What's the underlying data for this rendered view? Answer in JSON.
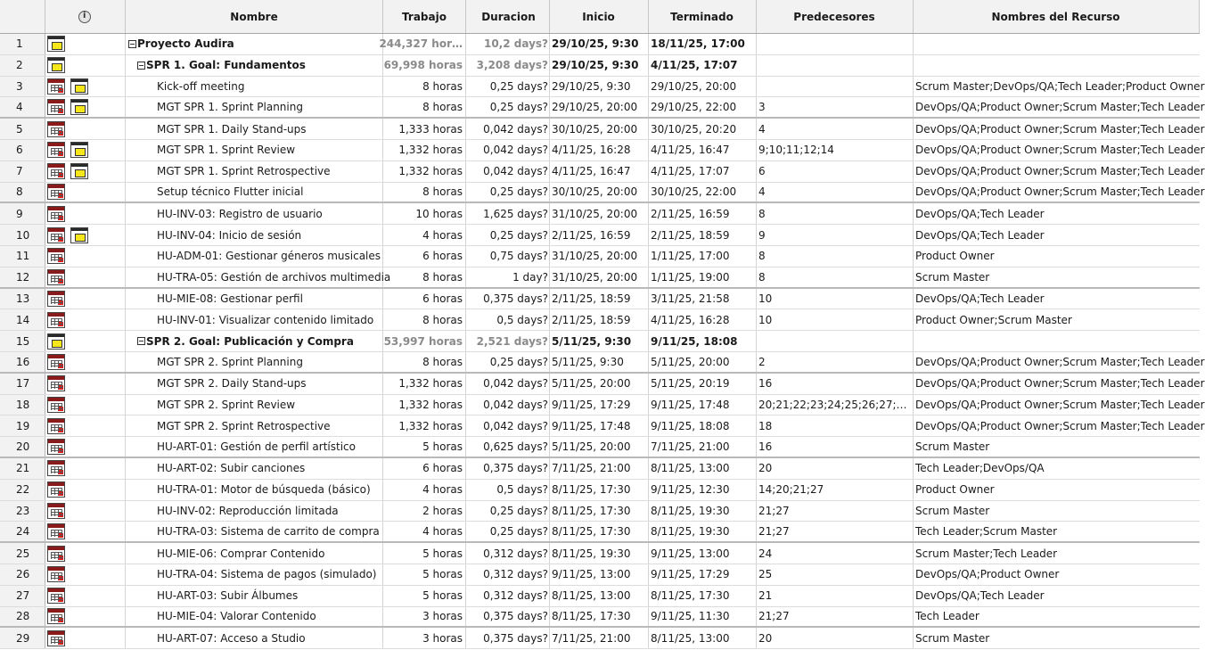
{
  "headers": {
    "info_icon": "info-icon",
    "name": "Nombre",
    "work": "Trabajo",
    "duration": "Duracion",
    "start": "Inicio",
    "end": "Terminado",
    "predecessors": "Predecesores",
    "resources": "Nombres del Recurso"
  },
  "rows": [
    {
      "id": "1",
      "level": 0,
      "summary": true,
      "name": "Proyecto Audira",
      "work": "244,327 hor…",
      "duration": "10,2 days?",
      "start": "29/10/25, 9:30",
      "end": "18/11/25, 17:00",
      "pred": "",
      "res": "",
      "icons": [
        "note"
      ]
    },
    {
      "id": "2",
      "level": 1,
      "summary": true,
      "name": "SPR 1. Goal: Fundamentos",
      "work": "69,998 horas",
      "duration": "3,208 days?",
      "start": "29/10/25, 9:30",
      "end": "4/11/25, 17:07",
      "pred": "",
      "res": "",
      "icons": [
        "note"
      ]
    },
    {
      "id": "3",
      "level": 2,
      "summary": false,
      "name": "Kick-off meeting",
      "work": "8 horas",
      "duration": "0,25 days?",
      "start": "29/10/25, 9:30",
      "end": "29/10/25, 20:00",
      "pred": "",
      "res": "Scrum Master;DevOps/QA;Tech Leader;Product Owner",
      "icons": [
        "cal",
        "note"
      ]
    },
    {
      "id": "4",
      "level": 2,
      "summary": false,
      "name": "MGT SPR 1. Sprint Planning",
      "work": "8 horas",
      "duration": "0,25 days?",
      "start": "29/10/25, 20:00",
      "end": "29/10/25, 22:00",
      "pred": "3",
      "res": "DevOps/QA;Product Owner;Scrum Master;Tech Leader",
      "icons": [
        "cal",
        "note"
      ]
    },
    {
      "id": "5",
      "level": 2,
      "summary": false,
      "name": "MGT SPR 1. Daily Stand-ups",
      "work": "1,333 horas",
      "duration": "0,042 days?",
      "start": "30/10/25, 20:00",
      "end": "30/10/25, 20:20",
      "pred": "4",
      "res": "DevOps/QA;Product Owner;Scrum Master;Tech Leader",
      "icons": [
        "cal"
      ]
    },
    {
      "id": "6",
      "level": 2,
      "summary": false,
      "name": "MGT SPR 1. Sprint Review",
      "work": "1,332 horas",
      "duration": "0,042 days?",
      "start": "4/11/25, 16:28",
      "end": "4/11/25, 16:47",
      "pred": "9;10;11;12;14",
      "res": "DevOps/QA;Product Owner;Scrum Master;Tech Leader",
      "icons": [
        "cal",
        "note"
      ]
    },
    {
      "id": "7",
      "level": 2,
      "summary": false,
      "name": "MGT SPR 1. Sprint Retrospective",
      "work": "1,332 horas",
      "duration": "0,042 days?",
      "start": "4/11/25, 16:47",
      "end": "4/11/25, 17:07",
      "pred": "6",
      "res": "DevOps/QA;Product Owner;Scrum Master;Tech Leader",
      "icons": [
        "cal",
        "note"
      ]
    },
    {
      "id": "8",
      "level": 2,
      "summary": false,
      "name": "Setup técnico Flutter inicial",
      "work": "8 horas",
      "duration": "0,25 days?",
      "start": "30/10/25, 20:00",
      "end": "30/10/25, 22:00",
      "pred": "4",
      "res": "DevOps/QA;Product Owner;Scrum Master;Tech Leader",
      "icons": [
        "cal"
      ]
    },
    {
      "id": "9",
      "level": 2,
      "summary": false,
      "name": "HU-INV-03: Registro de usuario",
      "work": "10 horas",
      "duration": "1,625 days?",
      "start": "31/10/25, 20:00",
      "end": "2/11/25, 16:59",
      "pred": "8",
      "res": "DevOps/QA;Tech Leader",
      "icons": [
        "cal"
      ]
    },
    {
      "id": "10",
      "level": 2,
      "summary": false,
      "name": "HU-INV-04: Inicio de sesión",
      "work": "4 horas",
      "duration": "0,25 days?",
      "start": "2/11/25, 16:59",
      "end": "2/11/25, 18:59",
      "pred": "9",
      "res": "DevOps/QA;Tech Leader",
      "icons": [
        "cal",
        "note"
      ]
    },
    {
      "id": "11",
      "level": 2,
      "summary": false,
      "name": "HU-ADM-01: Gestionar géneros musicales",
      "work": "6 horas",
      "duration": "0,75 days?",
      "start": "31/10/25, 20:00",
      "end": "1/11/25, 17:00",
      "pred": "8",
      "res": "Product Owner",
      "icons": [
        "cal"
      ]
    },
    {
      "id": "12",
      "level": 2,
      "summary": false,
      "name": "HU-TRA-05: Gestión de archivos multimedia",
      "work": "8 horas",
      "duration": "1 day?",
      "start": "31/10/25, 20:00",
      "end": "1/11/25, 19:00",
      "pred": "8",
      "res": "Scrum Master",
      "icons": [
        "cal"
      ]
    },
    {
      "id": "13",
      "level": 2,
      "summary": false,
      "name": "HU-MIE-08: Gestionar perfil",
      "work": "6 horas",
      "duration": "0,375 days?",
      "start": "2/11/25, 18:59",
      "end": "3/11/25, 21:58",
      "pred": "10",
      "res": "DevOps/QA;Tech Leader",
      "icons": [
        "cal"
      ]
    },
    {
      "id": "14",
      "level": 2,
      "summary": false,
      "name": "HU-INV-01: Visualizar contenido limitado",
      "work": "8 horas",
      "duration": "0,5 days?",
      "start": "2/11/25, 18:59",
      "end": "4/11/25, 16:28",
      "pred": "10",
      "res": "Product Owner;Scrum Master",
      "icons": [
        "cal"
      ]
    },
    {
      "id": "15",
      "level": 1,
      "summary": true,
      "name": "SPR 2. Goal: Publicación y Compra",
      "work": "53,997 horas",
      "duration": "2,521 days?",
      "start": "5/11/25, 9:30",
      "end": "9/11/25, 18:08",
      "pred": "",
      "res": "",
      "icons": [
        "note"
      ]
    },
    {
      "id": "16",
      "level": 2,
      "summary": false,
      "name": "MGT SPR 2. Sprint Planning",
      "work": "8 horas",
      "duration": "0,25 days?",
      "start": "5/11/25, 9:30",
      "end": "5/11/25, 20:00",
      "pred": "2",
      "res": "DevOps/QA;Product Owner;Scrum Master;Tech Leader",
      "icons": [
        "cal"
      ]
    },
    {
      "id": "17",
      "level": 2,
      "summary": false,
      "name": "MGT SPR 2. Daily Stand-ups",
      "work": "1,332 horas",
      "duration": "0,042 days?",
      "start": "5/11/25, 20:00",
      "end": "5/11/25, 20:19",
      "pred": "16",
      "res": "DevOps/QA;Product Owner;Scrum Master;Tech Leader",
      "icons": [
        "cal"
      ]
    },
    {
      "id": "18",
      "level": 2,
      "summary": false,
      "name": "MGT SPR 2. Sprint Review",
      "work": "1,332 horas",
      "duration": "0,042 days?",
      "start": "9/11/25, 17:29",
      "end": "9/11/25, 17:48",
      "pred": "20;21;22;23;24;25;26;27;…",
      "res": "DevOps/QA;Product Owner;Scrum Master;Tech Leader",
      "icons": [
        "cal"
      ]
    },
    {
      "id": "19",
      "level": 2,
      "summary": false,
      "name": "MGT SPR 2. Sprint Retrospective",
      "work": "1,332 horas",
      "duration": "0,042 days?",
      "start": "9/11/25, 17:48",
      "end": "9/11/25, 18:08",
      "pred": "18",
      "res": "DevOps/QA;Product Owner;Scrum Master;Tech Leader",
      "icons": [
        "cal"
      ]
    },
    {
      "id": "20",
      "level": 2,
      "summary": false,
      "name": "HU-ART-01: Gestión de perfil artístico",
      "work": "5 horas",
      "duration": "0,625 days?",
      "start": "5/11/25, 20:00",
      "end": "7/11/25, 21:00",
      "pred": "16",
      "res": "Scrum Master",
      "icons": [
        "cal"
      ]
    },
    {
      "id": "21",
      "level": 2,
      "summary": false,
      "name": "HU-ART-02: Subir canciones",
      "work": "6 horas",
      "duration": "0,375 days?",
      "start": "7/11/25, 21:00",
      "end": "8/11/25, 13:00",
      "pred": "20",
      "res": "Tech Leader;DevOps/QA",
      "icons": [
        "cal"
      ]
    },
    {
      "id": "22",
      "level": 2,
      "summary": false,
      "name": "HU-TRA-01: Motor de búsqueda (básico)",
      "work": "4 horas",
      "duration": "0,5 days?",
      "start": "8/11/25, 17:30",
      "end": "9/11/25, 12:30",
      "pred": "14;20;21;27",
      "res": "Product Owner",
      "icons": [
        "cal"
      ]
    },
    {
      "id": "23",
      "level": 2,
      "summary": false,
      "name": "HU-INV-02: Reproducción limitada",
      "work": "2 horas",
      "duration": "0,25 days?",
      "start": "8/11/25, 17:30",
      "end": "8/11/25, 19:30",
      "pred": "21;27",
      "res": "Scrum Master",
      "icons": [
        "cal"
      ]
    },
    {
      "id": "24",
      "level": 2,
      "summary": false,
      "name": "HU-TRA-03: Sistema de carrito de compra",
      "work": "4 horas",
      "duration": "0,25 days?",
      "start": "8/11/25, 17:30",
      "end": "8/11/25, 19:30",
      "pred": "21;27",
      "res": "Tech Leader;Scrum Master",
      "icons": [
        "cal"
      ]
    },
    {
      "id": "25",
      "level": 2,
      "summary": false,
      "name": "HU-MIE-06: Comprar Contenido",
      "work": "5 horas",
      "duration": "0,312 days?",
      "start": "8/11/25, 19:30",
      "end": "9/11/25, 13:00",
      "pred": "24",
      "res": "Scrum Master;Tech Leader",
      "icons": [
        "cal"
      ]
    },
    {
      "id": "26",
      "level": 2,
      "summary": false,
      "name": "HU-TRA-04: Sistema de pagos (simulado)",
      "work": "5 horas",
      "duration": "0,312 days?",
      "start": "9/11/25, 13:00",
      "end": "9/11/25, 17:29",
      "pred": "25",
      "res": "DevOps/QA;Product Owner",
      "icons": [
        "cal"
      ]
    },
    {
      "id": "27",
      "level": 2,
      "summary": false,
      "name": "HU-ART-03: Subir Álbumes",
      "work": "5 horas",
      "duration": "0,312 days?",
      "start": "8/11/25, 13:00",
      "end": "8/11/25, 17:30",
      "pred": "21",
      "res": "DevOps/QA;Tech Leader",
      "icons": [
        "cal"
      ]
    },
    {
      "id": "28",
      "level": 2,
      "summary": false,
      "name": "HU-MIE-04: Valorar Contenido",
      "work": "3 horas",
      "duration": "0,375 days?",
      "start": "8/11/25, 17:30",
      "end": "9/11/25, 11:30",
      "pred": "21;27",
      "res": "Tech Leader",
      "icons": [
        "cal"
      ]
    },
    {
      "id": "29",
      "level": 2,
      "summary": false,
      "name": "HU-ART-07: Acceso a Studio",
      "work": "3 horas",
      "duration": "0,375 days?",
      "start": "7/11/25, 21:00",
      "end": "8/11/25, 13:00",
      "pred": "20",
      "res": "Scrum Master",
      "icons": [
        "cal"
      ]
    }
  ]
}
